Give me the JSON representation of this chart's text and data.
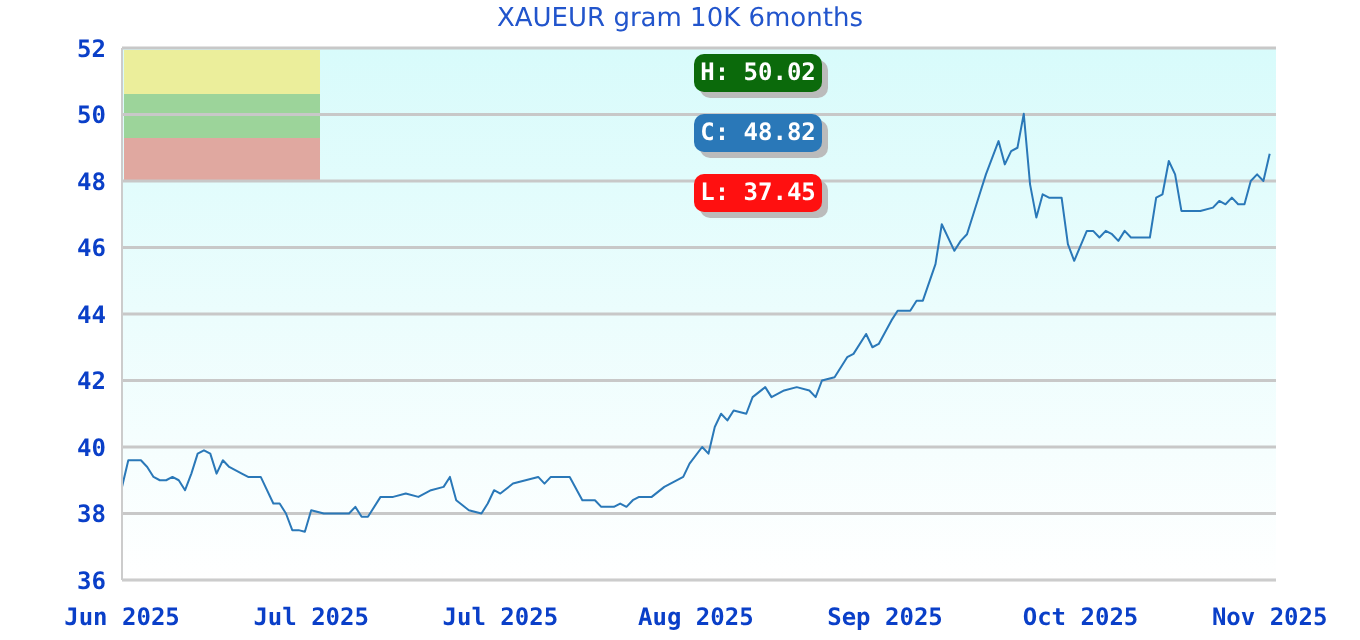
{
  "chart_data": {
    "type": "line",
    "title": "XAUEUR gram 10K 6months",
    "x": [
      "2025-06-01",
      "2025-06-02",
      "2025-06-03",
      "2025-06-04",
      "2025-06-05",
      "2025-06-06",
      "2025-06-07",
      "2025-06-08",
      "2025-06-09",
      "2025-06-10",
      "2025-06-11",
      "2025-06-12",
      "2025-06-13",
      "2025-06-14",
      "2025-06-15",
      "2025-06-16",
      "2025-06-17",
      "2025-06-18",
      "2025-06-20",
      "2025-06-21",
      "2025-06-23",
      "2025-06-25",
      "2025-06-26",
      "2025-06-27",
      "2025-06-28",
      "2025-06-29",
      "2025-06-30",
      "2025-07-01",
      "2025-07-03",
      "2025-07-04",
      "2025-07-07",
      "2025-07-08",
      "2025-07-09",
      "2025-07-10",
      "2025-07-12",
      "2025-07-14",
      "2025-07-16",
      "2025-07-18",
      "2025-07-20",
      "2025-07-22",
      "2025-07-23",
      "2025-07-24",
      "2025-07-26",
      "2025-07-28",
      "2025-07-29",
      "2025-07-30",
      "2025-07-31",
      "2025-08-02",
      "2025-08-04",
      "2025-08-06",
      "2025-08-07",
      "2025-08-08",
      "2025-08-10",
      "2025-08-11",
      "2025-08-13",
      "2025-08-15",
      "2025-08-16",
      "2025-08-18",
      "2025-08-19",
      "2025-08-20",
      "2025-08-21",
      "2025-08-22",
      "2025-08-23",
      "2025-08-24",
      "2025-08-26",
      "2025-08-29",
      "2025-08-30",
      "2025-09-01",
      "2025-09-02",
      "2025-09-03",
      "2025-09-04",
      "2025-09-05",
      "2025-09-06",
      "2025-09-08",
      "2025-09-09",
      "2025-09-11",
      "2025-09-12",
      "2025-09-14",
      "2025-09-16",
      "2025-09-18",
      "2025-09-19",
      "2025-09-20",
      "2025-09-22",
      "2025-09-24",
      "2025-09-25",
      "2025-09-27",
      "2025-09-28",
      "2025-09-29",
      "2025-10-01",
      "2025-10-02",
      "2025-10-04",
      "2025-10-05",
      "2025-10-06",
      "2025-10-08",
      "2025-10-09",
      "2025-10-11",
      "2025-10-12",
      "2025-10-13",
      "2025-10-15",
      "2025-10-16",
      "2025-10-18",
      "2025-10-19",
      "2025-10-20",
      "2025-10-21",
      "2025-10-22",
      "2025-10-23",
      "2025-10-24",
      "2025-10-25",
      "2025-10-26",
      "2025-10-28",
      "2025-10-29",
      "2025-10-30",
      "2025-11-01",
      "2025-11-02",
      "2025-11-03",
      "2025-11-04",
      "2025-11-05",
      "2025-11-06",
      "2025-11-07",
      "2025-11-08",
      "2025-11-11",
      "2025-11-12",
      "2025-11-13",
      "2025-11-14",
      "2025-11-15",
      "2025-11-16",
      "2025-11-18",
      "2025-11-19",
      "2025-11-21",
      "2025-11-22",
      "2025-11-23",
      "2025-11-24",
      "2025-11-25",
      "2025-11-26",
      "2025-11-27",
      "2025-11-28",
      "2025-11-29",
      "2025-11-30"
    ],
    "series": [
      {
        "color": "#2a78b8",
        "values": [
          38.8,
          39.6,
          39.6,
          39.6,
          39.4,
          39.1,
          39,
          39,
          39.1,
          39,
          38.7,
          39.2,
          39.8,
          39.9,
          39.8,
          39.2,
          39.6,
          39.4,
          39.2,
          39.1,
          39.1,
          38.3,
          38.3,
          38,
          37.5,
          37.5,
          37.45,
          38.1,
          38,
          38,
          38,
          38.2,
          37.9,
          37.9,
          38.5,
          38.5,
          38.6,
          38.5,
          38.7,
          38.8,
          39.1,
          38.4,
          38.1,
          38,
          38.3,
          38.7,
          38.6,
          38.9,
          39,
          39.1,
          38.9,
          39.1,
          39.1,
          39.1,
          38.4,
          38.4,
          38.2,
          38.2,
          38.3,
          38.2,
          38.4,
          38.5,
          38.5,
          38.5,
          38.8,
          39.1,
          39.5,
          40,
          39.8,
          40.6,
          41,
          40.8,
          41.1,
          41,
          41.5,
          41.8,
          41.5,
          41.7,
          41.8,
          41.7,
          41.5,
          42,
          42.1,
          42.7,
          42.8,
          43.4,
          43,
          43.1,
          43.8,
          44.1,
          44.1,
          44.4,
          44.4,
          45.5,
          46.7,
          45.9,
          46.2,
          46.4,
          47.6,
          48.2,
          49.2,
          48.5,
          48.9,
          49,
          50.02,
          47.9,
          46.9,
          47.6,
          47.5,
          47.5,
          46.1,
          45.6,
          46.5,
          46.5,
          46.3,
          46.5,
          46.4,
          46.2,
          46.5,
          46.3,
          46.3,
          47.5,
          47.6,
          48.6,
          48.2,
          47.1,
          47.1,
          47.1,
          47.2,
          47.4,
          47.3,
          47.5,
          47.3,
          47.3,
          48,
          48.2,
          48,
          48.82
        ]
      }
    ],
    "xlim": [
      "2025-06-01",
      "2025-12-01"
    ],
    "xticks": [
      {
        "value": "2025-06-01",
        "label": "Jun 2025"
      },
      {
        "value": "2025-07-01",
        "label": "Jul 2025"
      },
      {
        "value": "2025-07-31",
        "label": "Jul 2025"
      },
      {
        "value": "2025-08-31",
        "label": "Aug 2025"
      },
      {
        "value": "2025-09-30",
        "label": "Sep 2025"
      },
      {
        "value": "2025-10-31",
        "label": "Oct 2025"
      },
      {
        "value": "2025-11-30",
        "label": "Nov 2025"
      }
    ],
    "ylim": [
      36,
      52
    ],
    "yticks": [
      36,
      38,
      40,
      42,
      44,
      46,
      48,
      50,
      52
    ],
    "grid": "y",
    "marker": "none",
    "line_style": "solid",
    "annotations": [
      "H: 50.02",
      "C: 48.82",
      "L: 37.45"
    ]
  }
}
